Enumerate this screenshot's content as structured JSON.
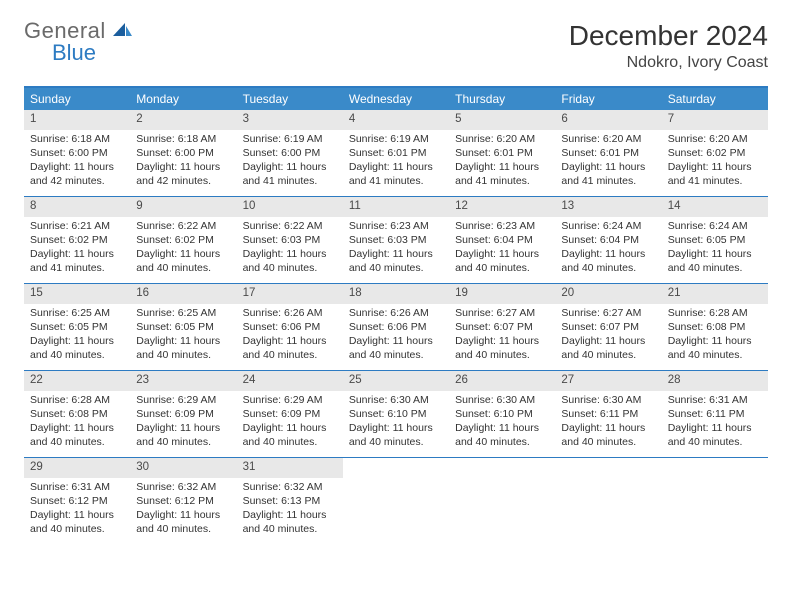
{
  "brand": {
    "part1": "General",
    "part2": "Blue"
  },
  "colors": {
    "header_band": "#3a8ac9",
    "border": "#2d7bc2",
    "daynum_bg": "#e8e8e8",
    "text": "#333333",
    "brand_gray": "#6a6a6a",
    "brand_blue": "#2d7bc2",
    "background": "#ffffff"
  },
  "title": "December 2024",
  "location": "Ndokro, Ivory Coast",
  "weekdays": [
    "Sunday",
    "Monday",
    "Tuesday",
    "Wednesday",
    "Thursday",
    "Friday",
    "Saturday"
  ],
  "days": [
    {
      "n": "1",
      "sr": "Sunrise: 6:18 AM",
      "ss": "Sunset: 6:00 PM",
      "dl": "Daylight: 11 hours and 42 minutes."
    },
    {
      "n": "2",
      "sr": "Sunrise: 6:18 AM",
      "ss": "Sunset: 6:00 PM",
      "dl": "Daylight: 11 hours and 42 minutes."
    },
    {
      "n": "3",
      "sr": "Sunrise: 6:19 AM",
      "ss": "Sunset: 6:00 PM",
      "dl": "Daylight: 11 hours and 41 minutes."
    },
    {
      "n": "4",
      "sr": "Sunrise: 6:19 AM",
      "ss": "Sunset: 6:01 PM",
      "dl": "Daylight: 11 hours and 41 minutes."
    },
    {
      "n": "5",
      "sr": "Sunrise: 6:20 AM",
      "ss": "Sunset: 6:01 PM",
      "dl": "Daylight: 11 hours and 41 minutes."
    },
    {
      "n": "6",
      "sr": "Sunrise: 6:20 AM",
      "ss": "Sunset: 6:01 PM",
      "dl": "Daylight: 11 hours and 41 minutes."
    },
    {
      "n": "7",
      "sr": "Sunrise: 6:20 AM",
      "ss": "Sunset: 6:02 PM",
      "dl": "Daylight: 11 hours and 41 minutes."
    },
    {
      "n": "8",
      "sr": "Sunrise: 6:21 AM",
      "ss": "Sunset: 6:02 PM",
      "dl": "Daylight: 11 hours and 41 minutes."
    },
    {
      "n": "9",
      "sr": "Sunrise: 6:22 AM",
      "ss": "Sunset: 6:02 PM",
      "dl": "Daylight: 11 hours and 40 minutes."
    },
    {
      "n": "10",
      "sr": "Sunrise: 6:22 AM",
      "ss": "Sunset: 6:03 PM",
      "dl": "Daylight: 11 hours and 40 minutes."
    },
    {
      "n": "11",
      "sr": "Sunrise: 6:23 AM",
      "ss": "Sunset: 6:03 PM",
      "dl": "Daylight: 11 hours and 40 minutes."
    },
    {
      "n": "12",
      "sr": "Sunrise: 6:23 AM",
      "ss": "Sunset: 6:04 PM",
      "dl": "Daylight: 11 hours and 40 minutes."
    },
    {
      "n": "13",
      "sr": "Sunrise: 6:24 AM",
      "ss": "Sunset: 6:04 PM",
      "dl": "Daylight: 11 hours and 40 minutes."
    },
    {
      "n": "14",
      "sr": "Sunrise: 6:24 AM",
      "ss": "Sunset: 6:05 PM",
      "dl": "Daylight: 11 hours and 40 minutes."
    },
    {
      "n": "15",
      "sr": "Sunrise: 6:25 AM",
      "ss": "Sunset: 6:05 PM",
      "dl": "Daylight: 11 hours and 40 minutes."
    },
    {
      "n": "16",
      "sr": "Sunrise: 6:25 AM",
      "ss": "Sunset: 6:05 PM",
      "dl": "Daylight: 11 hours and 40 minutes."
    },
    {
      "n": "17",
      "sr": "Sunrise: 6:26 AM",
      "ss": "Sunset: 6:06 PM",
      "dl": "Daylight: 11 hours and 40 minutes."
    },
    {
      "n": "18",
      "sr": "Sunrise: 6:26 AM",
      "ss": "Sunset: 6:06 PM",
      "dl": "Daylight: 11 hours and 40 minutes."
    },
    {
      "n": "19",
      "sr": "Sunrise: 6:27 AM",
      "ss": "Sunset: 6:07 PM",
      "dl": "Daylight: 11 hours and 40 minutes."
    },
    {
      "n": "20",
      "sr": "Sunrise: 6:27 AM",
      "ss": "Sunset: 6:07 PM",
      "dl": "Daylight: 11 hours and 40 minutes."
    },
    {
      "n": "21",
      "sr": "Sunrise: 6:28 AM",
      "ss": "Sunset: 6:08 PM",
      "dl": "Daylight: 11 hours and 40 minutes."
    },
    {
      "n": "22",
      "sr": "Sunrise: 6:28 AM",
      "ss": "Sunset: 6:08 PM",
      "dl": "Daylight: 11 hours and 40 minutes."
    },
    {
      "n": "23",
      "sr": "Sunrise: 6:29 AM",
      "ss": "Sunset: 6:09 PM",
      "dl": "Daylight: 11 hours and 40 minutes."
    },
    {
      "n": "24",
      "sr": "Sunrise: 6:29 AM",
      "ss": "Sunset: 6:09 PM",
      "dl": "Daylight: 11 hours and 40 minutes."
    },
    {
      "n": "25",
      "sr": "Sunrise: 6:30 AM",
      "ss": "Sunset: 6:10 PM",
      "dl": "Daylight: 11 hours and 40 minutes."
    },
    {
      "n": "26",
      "sr": "Sunrise: 6:30 AM",
      "ss": "Sunset: 6:10 PM",
      "dl": "Daylight: 11 hours and 40 minutes."
    },
    {
      "n": "27",
      "sr": "Sunrise: 6:30 AM",
      "ss": "Sunset: 6:11 PM",
      "dl": "Daylight: 11 hours and 40 minutes."
    },
    {
      "n": "28",
      "sr": "Sunrise: 6:31 AM",
      "ss": "Sunset: 6:11 PM",
      "dl": "Daylight: 11 hours and 40 minutes."
    },
    {
      "n": "29",
      "sr": "Sunrise: 6:31 AM",
      "ss": "Sunset: 6:12 PM",
      "dl": "Daylight: 11 hours and 40 minutes."
    },
    {
      "n": "30",
      "sr": "Sunrise: 6:32 AM",
      "ss": "Sunset: 6:12 PM",
      "dl": "Daylight: 11 hours and 40 minutes."
    },
    {
      "n": "31",
      "sr": "Sunrise: 6:32 AM",
      "ss": "Sunset: 6:13 PM",
      "dl": "Daylight: 11 hours and 40 minutes."
    }
  ],
  "layout": {
    "first_weekday_index": 0,
    "total_cells": 35,
    "columns": 7
  },
  "typography": {
    "title_fontsize": 28,
    "location_fontsize": 16,
    "weekday_fontsize": 12,
    "cell_fontsize": 10.5,
    "daynum_fontsize": 11.5
  }
}
